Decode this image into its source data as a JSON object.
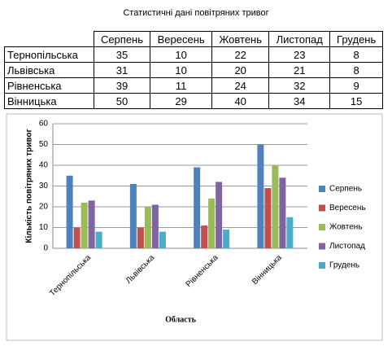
{
  "title": "Статистичні дані повітряних тривог",
  "table": {
    "header": [
      null,
      "Серпень",
      "Вересень",
      "Жовтень",
      "Листопад",
      "Грудень"
    ],
    "rows": [
      [
        "Тернопільська",
        35,
        10,
        22,
        23,
        8
      ],
      [
        "Львівська",
        31,
        10,
        20,
        21,
        8
      ],
      [
        "Рівненська",
        39,
        11,
        24,
        32,
        9
      ],
      [
        "Вінницька",
        50,
        29,
        40,
        34,
        15
      ]
    ]
  },
  "chart_data": {
    "type": "bar",
    "categories": [
      "Тернопільська",
      "Львівська",
      "Рівненська",
      "Вінницька"
    ],
    "series": [
      {
        "name": "Серпень",
        "color": "#4f81bd",
        "values": [
          35,
          31,
          39,
          50
        ]
      },
      {
        "name": "Вересень",
        "color": "#c0504d",
        "values": [
          10,
          10,
          11,
          29
        ]
      },
      {
        "name": "Жовтень",
        "color": "#9bbb59",
        "values": [
          22,
          20,
          24,
          40
        ]
      },
      {
        "name": "Листопад",
        "color": "#8064a2",
        "values": [
          23,
          21,
          32,
          34
        ]
      },
      {
        "name": "Грудень",
        "color": "#4bacc6",
        "values": [
          8,
          8,
          9,
          15
        ]
      }
    ],
    "ylim": [
      0,
      60
    ],
    "yticks": [
      0,
      10,
      20,
      30,
      40,
      50,
      60
    ],
    "grid": true,
    "xlabel": "Область",
    "ylabel": "Кількість повітряних тривог",
    "legend": "right"
  }
}
